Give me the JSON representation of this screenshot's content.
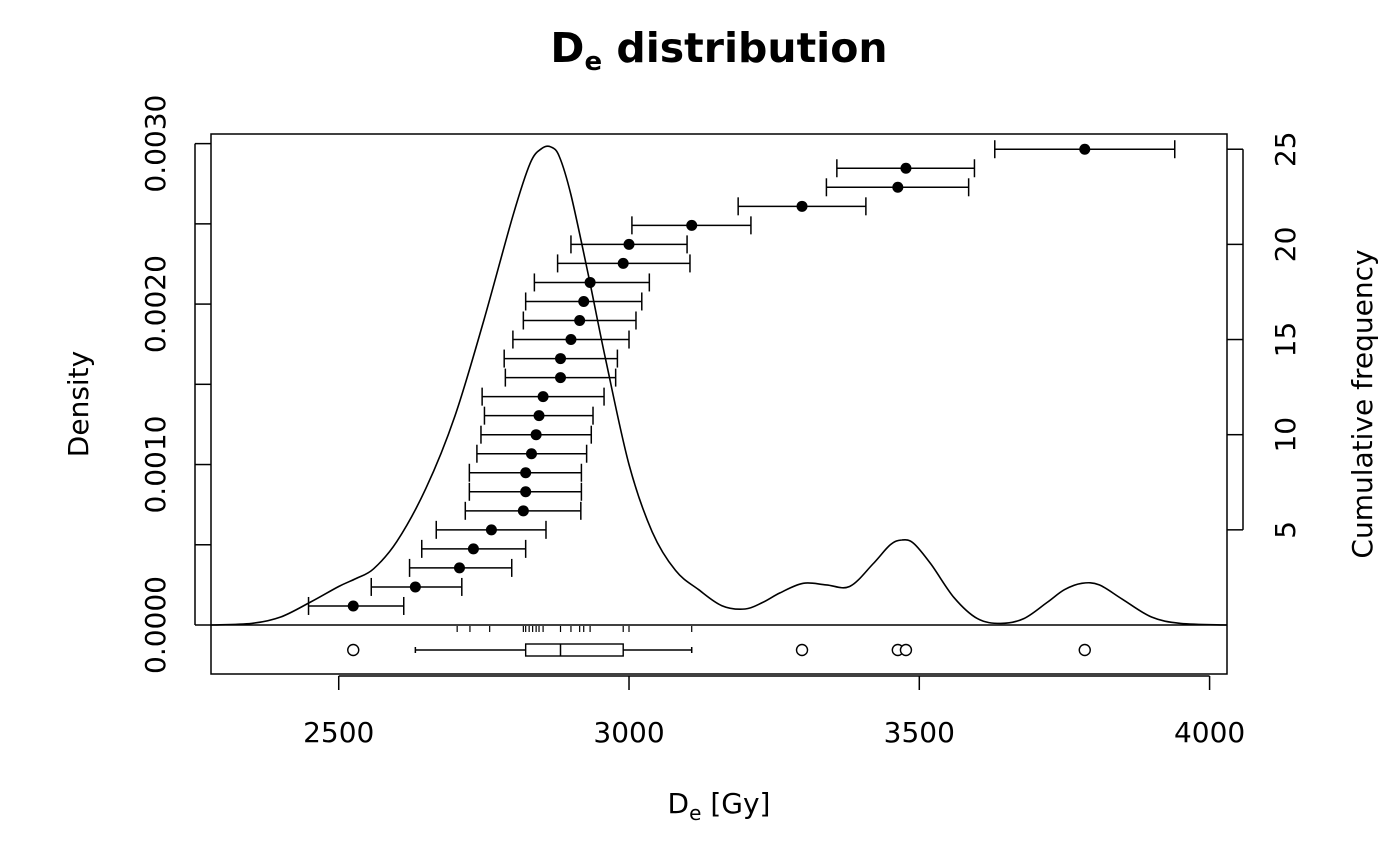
{
  "chart_data": {
    "type": "line",
    "title": "D",
    "title_sub": "e",
    "title_rest": " distribution",
    "xlabel_main": "D",
    "xlabel_sub": "e",
    "xlabel_rest": " [Gy]",
    "ylabel_left": "Density",
    "ylabel_right": "Cumulative frequency",
    "xlim": [
      2280,
      4030
    ],
    "x_ticks": [
      2500,
      3000,
      3500,
      4000
    ],
    "x_tick_labels": [
      "2500",
      "3000",
      "3500",
      "4000"
    ],
    "ylim_left": [
      0,
      0.00306
    ],
    "y_left_ticks": [
      0,
      0.0005,
      0.001,
      0.0015,
      0.002,
      0.0025,
      0.003
    ],
    "y_left_tick_labels": [
      "0.0000",
      "",
      "0.0010",
      "",
      "0.0020",
      "",
      "0.0030"
    ],
    "ylim_right": [
      0,
      25.8
    ],
    "y_right_ticks": [
      5,
      10,
      15,
      20,
      25
    ],
    "y_right_tick_labels": [
      "5",
      "10",
      "15",
      "20",
      "25"
    ],
    "density_curve": {
      "x": [
        2280,
        2350,
        2400,
        2450,
        2500,
        2530,
        2560,
        2600,
        2650,
        2700,
        2750,
        2800,
        2830,
        2850,
        2865,
        2880,
        2900,
        2930,
        2960,
        3000,
        3040,
        3080,
        3120,
        3160,
        3200,
        3230,
        3260,
        3300,
        3340,
        3380,
        3420,
        3450,
        3470,
        3490,
        3520,
        3560,
        3600,
        3640,
        3680,
        3720,
        3750,
        3780,
        3810,
        3850,
        3900,
        3950,
        4030
      ],
      "y": [
        0.0,
        1e-05,
        5e-05,
        0.00014,
        0.00024,
        0.00029,
        0.00035,
        0.00052,
        0.00085,
        0.0013,
        0.0019,
        0.00255,
        0.00288,
        0.00297,
        0.00298,
        0.00292,
        0.00268,
        0.00218,
        0.00165,
        0.001,
        0.00058,
        0.00034,
        0.00022,
        0.00012,
        0.0001,
        0.00014,
        0.0002,
        0.00026,
        0.00025,
        0.00024,
        0.00038,
        0.0005,
        0.00053,
        0.00051,
        0.00038,
        0.00017,
        4e-05,
        1e-05,
        4e-05,
        0.00014,
        0.00022,
        0.00026,
        0.00025,
        0.00016,
        5e-05,
        1e-05,
        0.0
      ]
    },
    "cumulative_points": [
      {
        "n": 1,
        "x": 2525,
        "lo": 2448,
        "hi": 2612
      },
      {
        "n": 2,
        "x": 2632,
        "lo": 2556,
        "hi": 2712
      },
      {
        "n": 3,
        "x": 2708,
        "lo": 2622,
        "hi": 2798
      },
      {
        "n": 4,
        "x": 2732,
        "lo": 2643,
        "hi": 2822
      },
      {
        "n": 5,
        "x": 2763,
        "lo": 2668,
        "hi": 2857
      },
      {
        "n": 6,
        "x": 2818,
        "lo": 2718,
        "hi": 2917
      },
      {
        "n": 7,
        "x": 2822,
        "lo": 2725,
        "hi": 2918
      },
      {
        "n": 8,
        "x": 2822,
        "lo": 2725,
        "hi": 2918
      },
      {
        "n": 9,
        "x": 2832,
        "lo": 2738,
        "hi": 2927
      },
      {
        "n": 10,
        "x": 2840,
        "lo": 2745,
        "hi": 2935
      },
      {
        "n": 11,
        "x": 2845,
        "lo": 2751,
        "hi": 2938
      },
      {
        "n": 12,
        "x": 2852,
        "lo": 2747,
        "hi": 2957
      },
      {
        "n": 13,
        "x": 2882,
        "lo": 2787,
        "hi": 2977
      },
      {
        "n": 14,
        "x": 2882,
        "lo": 2785,
        "hi": 2980
      },
      {
        "n": 15,
        "x": 2900,
        "lo": 2800,
        "hi": 3000
      },
      {
        "n": 16,
        "x": 2915,
        "lo": 2818,
        "hi": 3012
      },
      {
        "n": 17,
        "x": 2922,
        "lo": 2822,
        "hi": 3022
      },
      {
        "n": 18,
        "x": 2933,
        "lo": 2837,
        "hi": 3035
      },
      {
        "n": 19,
        "x": 2990,
        "lo": 2877,
        "hi": 3105
      },
      {
        "n": 20,
        "x": 3000,
        "lo": 2900,
        "hi": 3100
      },
      {
        "n": 21,
        "x": 3108,
        "lo": 3005,
        "hi": 3210
      },
      {
        "n": 22,
        "x": 3298,
        "lo": 3188,
        "hi": 3408
      },
      {
        "n": 23,
        "x": 3463,
        "lo": 3340,
        "hi": 3585
      },
      {
        "n": 24,
        "x": 3477,
        "lo": 3358,
        "hi": 3595
      },
      {
        "n": 25,
        "x": 3785,
        "lo": 3630,
        "hi": 3940
      }
    ],
    "boxplot": {
      "whisker_low": 2632,
      "q1": 2822,
      "median": 2882,
      "q3": 2990,
      "whisker_high": 3108,
      "outliers": [
        2525,
        3298,
        3463,
        3477,
        3785
      ]
    },
    "rug": [
      2704,
      2726,
      2760,
      2818,
      2822,
      2828,
      2834,
      2840,
      2845,
      2852,
      2882,
      2900,
      2915,
      2922,
      2933,
      2990,
      3000,
      3108
    ],
    "grid": false
  }
}
